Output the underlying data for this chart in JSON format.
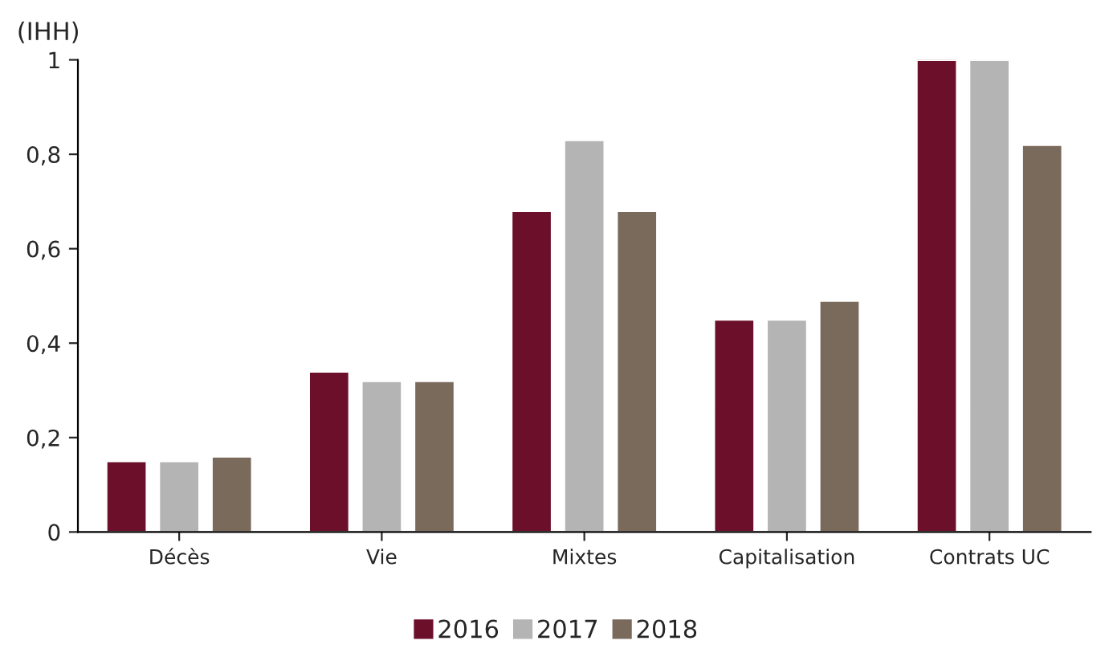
{
  "chart_data": {
    "type": "bar",
    "ylabel": "(IHH)",
    "categories": [
      "Décès",
      "Vie",
      "Mixtes",
      "Capitalisation",
      "Contrats UC"
    ],
    "series": [
      {
        "name": "2016",
        "color": "#6b0f2b",
        "values": [
          0.15,
          0.34,
          0.68,
          0.45,
          1
        ]
      },
      {
        "name": "2017",
        "color": "#b4b4b4",
        "values": [
          0.15,
          0.32,
          0.83,
          0.45,
          1
        ]
      },
      {
        "name": "2018",
        "color": "#7a6a5b",
        "values": [
          0.16,
          0.32,
          0.68,
          0.49,
          0.82
        ]
      }
    ],
    "ylim": [
      0,
      1
    ],
    "yticks": [
      0,
      {
        "value": 0.2,
        "label": "0,2"
      },
      {
        "value": 0.4,
        "label": "0,4"
      },
      {
        "value": 0.6,
        "label": "0,6"
      },
      {
        "value": 0.8,
        "label": "0,8"
      },
      1
    ],
    "grid": false,
    "legend": "bottom"
  }
}
